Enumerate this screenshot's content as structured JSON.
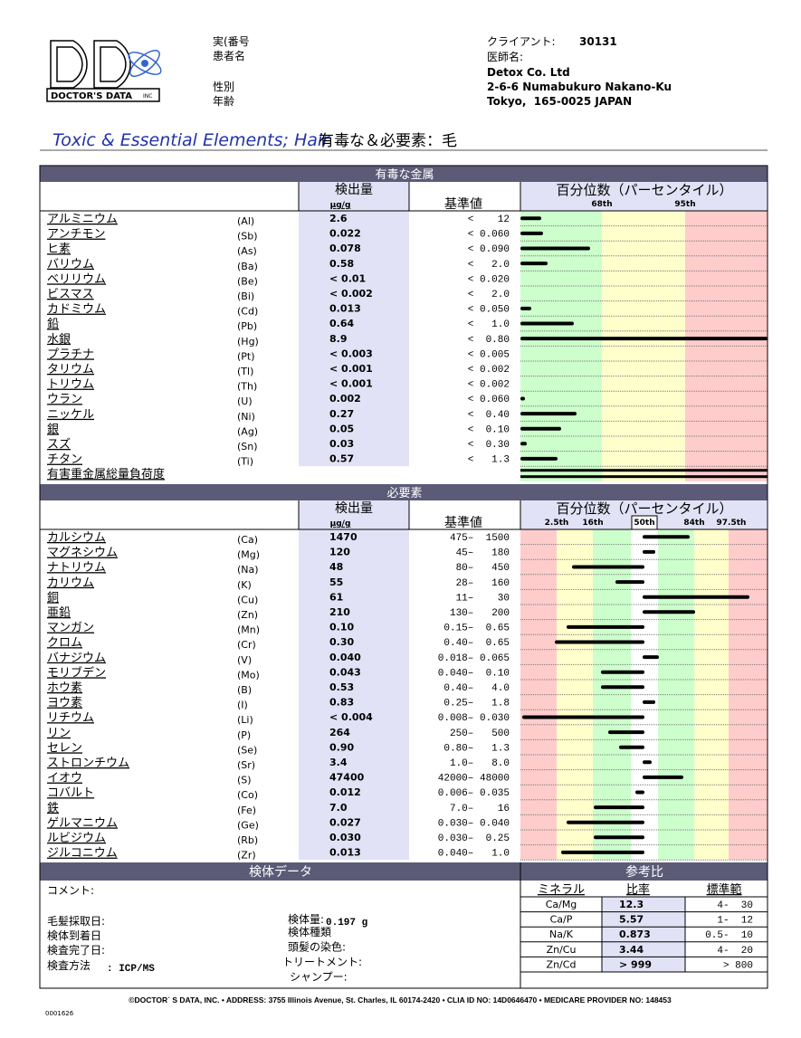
{
  "header": {
    "logo": "DOCTOR'S DATA",
    "logo_inc": "INC",
    "patient_labels": [
      "実(番号",
      "患者名",
      "性別",
      "年齢"
    ],
    "client_label": "クライアント:",
    "client_no": "30131",
    "doctor_label": "医師名:",
    "address": [
      "Detox Co. Ltd",
      "2-6-6 Numabukuro Nakano-Ku",
      "Tokyo,  165-0025 JAPAN"
    ]
  },
  "title": {
    "en": "Toxic & Essential Elements; Hair",
    "ja": "有毒な＆必要素：毛"
  },
  "toxic": {
    "heading": "有毒な金属",
    "col_result": "検出量",
    "unit": "µg/g",
    "col_ref": "基準値",
    "col_graph": "百分位数（パーセンタイル）",
    "percentiles": [
      "68th",
      "95th"
    ],
    "rows": [
      {
        "name": "アルミニウム",
        "symbol": "(Al)",
        "result": "2.6",
        "range": "<    12"
      },
      {
        "name": "アンチモン",
        "symbol": "(Sb)",
        "result": "0.022",
        "range": "< 0.060"
      },
      {
        "name": "ヒ素",
        "symbol": "(As)",
        "result": "0.078",
        "range": "< 0.090"
      },
      {
        "name": "バリウム",
        "symbol": "(Ba)",
        "result": "0.58",
        "range": "<   2.0"
      },
      {
        "name": "ベリリウム",
        "symbol": "(Be)",
        "result": "< 0.01",
        "range": "< 0.020"
      },
      {
        "name": "ビスマス",
        "symbol": "(Bi)",
        "result": "< 0.002",
        "range": "<   2.0"
      },
      {
        "name": "カドミウム",
        "symbol": "(Cd)",
        "result": "0.013",
        "range": "< 0.050"
      },
      {
        "name": "鉛",
        "symbol": "(Pb)",
        "result": "0.64",
        "range": "<   1.0"
      },
      {
        "name": "水銀",
        "symbol": "(Hg)",
        "result": "8.9",
        "range": "<  0.80"
      },
      {
        "name": "プラチナ",
        "symbol": "(Pt)",
        "result": "< 0.003",
        "range": "< 0.005"
      },
      {
        "name": "タリウム",
        "symbol": "(Tl)",
        "result": "< 0.001",
        "range": "< 0.002"
      },
      {
        "name": "トリウム",
        "symbol": "(Th)",
        "result": "< 0.001",
        "range": "< 0.002"
      },
      {
        "name": "ウラン",
        "symbol": "(U)",
        "result": "0.002",
        "range": "< 0.060"
      },
      {
        "name": "ニッケル",
        "symbol": "(Ni)",
        "result": "0.27",
        "range": "<  0.40"
      },
      {
        "name": "銀",
        "symbol": "(Ag)",
        "result": "0.05",
        "range": "<  0.10"
      },
      {
        "name": "スズ",
        "symbol": "(Sn)",
        "result": "0.03",
        "range": "<  0.30"
      },
      {
        "name": "チタン",
        "symbol": "(Ti)",
        "result": "0.57",
        "range": "<   1.3"
      }
    ],
    "total_label": "有害重金属総量負荷度"
  },
  "essential": {
    "heading": "必要素",
    "col_result": "検出量",
    "unit": "µg/g",
    "col_ref": "基準値",
    "col_graph": "百分位数（パーセンタイル）",
    "percentiles": [
      "2.5th",
      "16th",
      "50th",
      "84th",
      "97.5th"
    ],
    "rows": [
      {
        "name": "カルシウム",
        "symbol": "(Ca)",
        "result": "1470",
        "range": "475–  1500"
      },
      {
        "name": "マグネシウム",
        "symbol": "(Mg)",
        "result": "120",
        "range": "45–   180"
      },
      {
        "name": "ナトリウム",
        "symbol": "(Na)",
        "result": "48",
        "range": "80–   450"
      },
      {
        "name": "カリウム",
        "symbol": "(K)",
        "result": "55",
        "range": "28–   160"
      },
      {
        "name": "銅",
        "symbol": "(Cu)",
        "result": "61",
        "range": "11–    30"
      },
      {
        "name": "亜鉛",
        "symbol": "(Zn)",
        "result": "210",
        "range": "130–   200"
      },
      {
        "name": "マンガン",
        "symbol": "(Mn)",
        "result": "0.10",
        "range": "0.15–  0.65"
      },
      {
        "name": "クロム",
        "symbol": "(Cr)",
        "result": "0.30",
        "range": "0.40–  0.65"
      },
      {
        "name": "バナジウム",
        "symbol": "(V)",
        "result": "0.040",
        "range": "0.018– 0.065"
      },
      {
        "name": "モリブデン",
        "symbol": "(Mo)",
        "result": "0.043",
        "range": "0.040–  0.10"
      },
      {
        "name": "ホウ素",
        "symbol": "(B)",
        "result": "0.53",
        "range": "0.40–   4.0"
      },
      {
        "name": "ヨウ素",
        "symbol": "(I)",
        "result": "0.83",
        "range": "0.25–   1.8"
      },
      {
        "name": "リチウム",
        "symbol": "(Li)",
        "result": "< 0.004",
        "range": "0.008– 0.030"
      },
      {
        "name": "リン",
        "symbol": "(P)",
        "result": "264",
        "range": "250–   500"
      },
      {
        "name": "セレン",
        "symbol": "(Se)",
        "result": "0.90",
        "range": "0.80–   1.3"
      },
      {
        "name": "ストロンチウム",
        "symbol": "(Sr)",
        "result": "3.4",
        "range": "1.0–   8.0"
      },
      {
        "name": "イオウ",
        "symbol": "(S)",
        "result": "47400",
        "range": "42000– 48000"
      },
      {
        "name": "コバルト",
        "symbol": "(Co)",
        "result": "0.012",
        "range": "0.006– 0.035"
      },
      {
        "name": "鉄",
        "symbol": "(Fe)",
        "result": "7.0",
        "range": "7.0–    16"
      },
      {
        "name": "ゲルマニウム",
        "symbol": "(Ge)",
        "result": "0.027",
        "range": "0.030– 0.040"
      },
      {
        "name": "ルビジウム",
        "symbol": "(Rb)",
        "result": "0.030",
        "range": "0.030–  0.25"
      },
      {
        "name": "ジルコニウム",
        "symbol": "(Zr)",
        "result": "0.013",
        "range": "0.040–   1.0"
      }
    ]
  },
  "specimen": {
    "heading": "検体データ",
    "comment_label": "コメント:",
    "dates": [
      "毛髪採取日:",
      "検体到着日",
      "検査完了日:"
    ],
    "method_label": "検査方法",
    "method": ": ICP/MS",
    "amount_label": "検体量:",
    "amount": "0.197 g",
    "details": [
      "検体種類",
      "頭髪の染色:",
      "トリートメント:",
      "シャンプー:"
    ]
  },
  "ratios": {
    "heading": "参考比",
    "columns": [
      "ミネラル",
      "比率",
      "標準範"
    ],
    "rows": [
      [
        "Ca/Mg",
        "12.3",
        "4-  30"
      ],
      [
        "Ca/P",
        "5.57",
        "1-  12"
      ],
      [
        "Na/K",
        "0.873",
        "0.5-  10"
      ],
      [
        "Zn/Cu",
        "3.44",
        "4-  20"
      ],
      [
        "Zn/Cd",
        "> 999",
        "> 800"
      ]
    ]
  },
  "footer": {
    "text": "©DOCTOR´ S DATA, INC. • ADDRESS: 3755 Illinois Avenue, St. Charles, IL 60174-2420 • CLIA ID NO: 14D0646470 • MEDICARE PROVIDER NO: 148453",
    "code": "0001626"
  }
}
